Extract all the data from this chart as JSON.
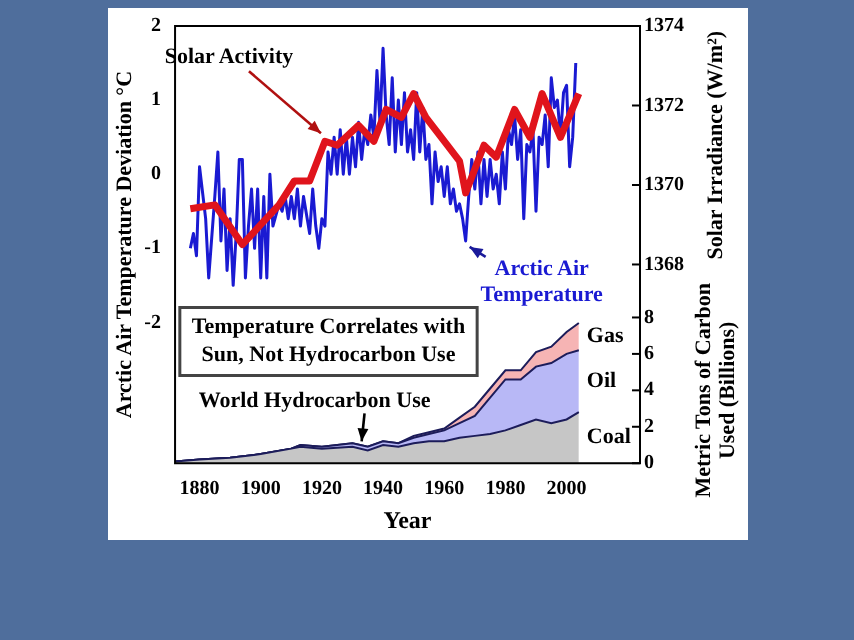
{
  "chart_data": {
    "type": "line",
    "xlabel": "Year",
    "ylabel": "Arctic Air Temperature Deviation °C",
    "y2label": "Solar Irradiance (W/m²)",
    "y3label": "Metric Tons of Carbon Used (Billions)",
    "xlim": [
      1872,
      2024
    ],
    "xticks": [
      1880,
      1900,
      1920,
      1940,
      1960,
      1980,
      2000
    ],
    "ylim": [
      -3.9,
      2
    ],
    "yticks": [
      -2,
      -1,
      0,
      1,
      2
    ],
    "y2lim": [
      1363,
      1374
    ],
    "y2ticks": [
      1368,
      1370,
      1372,
      1374
    ],
    "y3lim": [
      0,
      24
    ],
    "y3ticks": [
      0,
      2,
      4,
      6,
      8
    ],
    "stacked": true,
    "annotations": [
      "Temperature Correlates with Sun, Not Hydrocarbon Use",
      "World Hydrocarbon Use"
    ],
    "series": [
      {
        "name": "Arctic Air Temperature",
        "type": "line",
        "color": "#1a1ad2",
        "x": [
          1877,
          1878,
          1879,
          1880,
          1882,
          1883,
          1885,
          1886,
          1887,
          1888,
          1889,
          1890,
          1891,
          1892,
          1893,
          1894,
          1895,
          1896,
          1897,
          1898,
          1899,
          1900,
          1901,
          1902,
          1903,
          1904,
          1906,
          1907,
          1908,
          1909,
          1910,
          1911,
          1912,
          1913,
          1914,
          1916,
          1917,
          1918,
          1919,
          1920,
          1921,
          1922,
          1923,
          1924,
          1925,
          1926,
          1927,
          1928,
          1929,
          1930,
          1931,
          1932,
          1933,
          1934,
          1935,
          1936,
          1937,
          1938,
          1939,
          1940,
          1941,
          1942,
          1943,
          1944,
          1945,
          1946,
          1947,
          1948,
          1949,
          1950,
          1951,
          1952,
          1953,
          1954,
          1955,
          1956,
          1957,
          1958,
          1959,
          1960,
          1961,
          1962,
          1963,
          1964,
          1965,
          1966,
          1967,
          1968,
          1969,
          1970,
          1971,
          1972,
          1973,
          1974,
          1975,
          1976,
          1977,
          1978,
          1979,
          1980,
          1981,
          1982,
          1983,
          1984,
          1985,
          1986,
          1987,
          1988,
          1989,
          1990,
          1991,
          1992,
          1993,
          1994,
          1995,
          1996,
          1997,
          1998,
          1999,
          2000,
          2001,
          2002,
          2003
        ],
        "values": [
          -1.0,
          -0.8,
          -1.1,
          0.1,
          -0.6,
          -1.4,
          -0.3,
          0.3,
          -0.9,
          -0.2,
          -1.3,
          -0.6,
          -1.5,
          -0.8,
          0.2,
          0.2,
          -1.4,
          -0.7,
          -0.2,
          -1.0,
          -0.2,
          -1.4,
          -0.3,
          -1.4,
          0.0,
          -0.7,
          -0.4,
          -0.5,
          -0.3,
          -0.6,
          -0.3,
          -0.6,
          -0.2,
          -0.7,
          -0.3,
          -0.8,
          -0.2,
          -0.7,
          -1.0,
          -0.6,
          -0.7,
          0.3,
          0.0,
          0.5,
          0.0,
          0.6,
          0.0,
          0.5,
          0.0,
          0.5,
          0.1,
          0.7,
          0.2,
          0.6,
          0.4,
          0.8,
          0.5,
          1.4,
          0.7,
          1.7,
          0.8,
          0.4,
          1.3,
          0.3,
          1.0,
          0.4,
          1.1,
          0.3,
          0.6,
          0.2,
          1.1,
          0.3,
          0.9,
          0.2,
          0.4,
          -0.4,
          0.3,
          -0.1,
          0.1,
          -0.3,
          0.1,
          -0.4,
          -0.2,
          -0.5,
          -0.4,
          -0.6,
          -0.9,
          -0.3,
          0.2,
          -0.2,
          0.3,
          -0.4,
          0.2,
          -0.3,
          0.2,
          -0.2,
          0.0,
          -0.4,
          0.3,
          -0.2,
          0.6,
          0.4,
          0.8,
          0.2,
          0.6,
          -0.6,
          0.4,
          0.3,
          0.6,
          -0.5,
          0.5,
          0.4,
          0.8,
          0.1,
          1.3,
          0.9,
          1.0,
          0.5,
          1.1,
          1.2,
          0.1,
          0.5,
          1.5
        ]
      },
      {
        "name": "Solar Activity",
        "type": "line",
        "axis": "y2",
        "color": "#e0141c",
        "x": [
          1877,
          1885,
          1894,
          1900,
          1906,
          1911,
          1916,
          1921,
          1925,
          1932,
          1937,
          1941,
          1946,
          1950,
          1954,
          1961,
          1965,
          1967,
          1973,
          1977,
          1983,
          1988,
          1992,
          1998,
          2004
        ],
        "values": [
          1369.4,
          1369.5,
          1368.5,
          1369.0,
          1369.5,
          1370.1,
          1370.1,
          1371.1,
          1371.0,
          1371.5,
          1371.1,
          1371.9,
          1371.7,
          1372.3,
          1371.7,
          1371.0,
          1370.6,
          1369.8,
          1371.0,
          1370.7,
          1371.9,
          1371.2,
          1372.3,
          1371.2,
          1372.3
        ]
      },
      {
        "name": "Coal",
        "type": "area",
        "axis": "y3",
        "color": "#c6c6c6",
        "x": [
          1872,
          1880,
          1890,
          1900,
          1910,
          1913,
          1920,
          1930,
          1935,
          1940,
          1945,
          1950,
          1955,
          1960,
          1965,
          1970,
          1975,
          1980,
          1985,
          1990,
          1995,
          2000,
          2004
        ],
        "values": [
          0.1,
          0.2,
          0.3,
          0.5,
          0.8,
          0.9,
          0.8,
          0.9,
          0.7,
          1.0,
          0.9,
          1.1,
          1.2,
          1.2,
          1.4,
          1.5,
          1.6,
          1.8,
          2.1,
          2.4,
          2.2,
          2.4,
          2.8
        ]
      },
      {
        "name": "Oil",
        "type": "area",
        "axis": "y3",
        "color": "#b8b8f6",
        "x": [
          1872,
          1880,
          1890,
          1900,
          1910,
          1913,
          1920,
          1930,
          1935,
          1940,
          1945,
          1950,
          1955,
          1960,
          1965,
          1970,
          1975,
          1980,
          1985,
          1990,
          1995,
          2000,
          2004
        ],
        "values": [
          0,
          0,
          0,
          0,
          0,
          0.1,
          0.1,
          0.2,
          0.2,
          0.2,
          0.2,
          0.3,
          0.4,
          0.6,
          0.8,
          1.1,
          2.0,
          2.8,
          2.5,
          2.9,
          3.3,
          3.6,
          3.4
        ]
      },
      {
        "name": "Gas",
        "type": "area",
        "axis": "y3",
        "color": "#f6b4b4",
        "x": [
          1872,
          1880,
          1890,
          1900,
          1910,
          1913,
          1920,
          1930,
          1935,
          1940,
          1945,
          1950,
          1955,
          1960,
          1965,
          1970,
          1975,
          1980,
          1985,
          1990,
          1995,
          2000,
          2004
        ],
        "values": [
          0,
          0,
          0,
          0,
          0,
          0,
          0,
          0,
          0,
          0,
          0,
          0.1,
          0.1,
          0.1,
          0.3,
          0.5,
          0.5,
          0.5,
          0.5,
          0.8,
          0.9,
          1.2,
          1.5
        ]
      }
    ]
  }
}
